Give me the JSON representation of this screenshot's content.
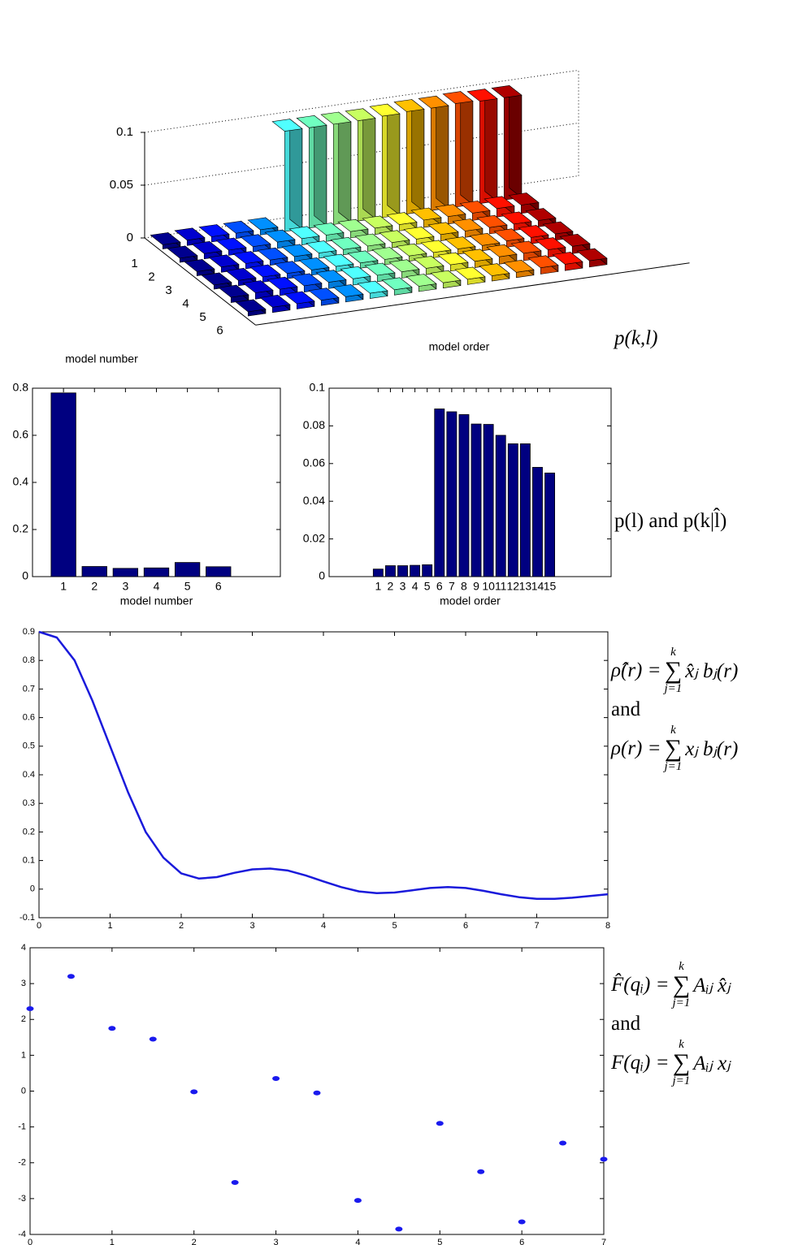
{
  "chart_data": [
    {
      "type": "bar3d",
      "xlabel": "model order",
      "ylabel": "model number",
      "caption": "p(k,l)",
      "model_ticks": [
        1,
        2,
        3,
        4,
        5,
        6
      ],
      "zlim": [
        0,
        0.1
      ],
      "zticks": [
        0,
        0.05,
        0.1
      ],
      "colors": [
        "#00008f",
        "#0000cf",
        "#0010ff",
        "#0050ff",
        "#0090ff",
        "#50ffff",
        "#70ffc0",
        "#a0ff90",
        "#c8ff60",
        "#ffff30",
        "#ffc000",
        "#ff9000",
        "#ff5000",
        "#ff1000",
        "#b00000"
      ],
      "values": [
        [
          0.004,
          0.005,
          0.005,
          0.005,
          0.005,
          0.095,
          0.095,
          0.095,
          0.095,
          0.096,
          0.097,
          0.097,
          0.098,
          0.097,
          0.097
        ],
        [
          0.004,
          0.005,
          0.005,
          0.005,
          0.006,
          0.006,
          0.006,
          0.006,
          0.006,
          0.006,
          0.007,
          0.007,
          0.007,
          0.008,
          0.008
        ],
        [
          0.004,
          0.005,
          0.005,
          0.005,
          0.005,
          0.005,
          0.005,
          0.005,
          0.005,
          0.005,
          0.006,
          0.006,
          0.006,
          0.006,
          0.006
        ],
        [
          0.004,
          0.005,
          0.005,
          0.005,
          0.005,
          0.005,
          0.005,
          0.005,
          0.005,
          0.005,
          0.005,
          0.005,
          0.006,
          0.006,
          0.006
        ],
        [
          0.005,
          0.006,
          0.006,
          0.006,
          0.006,
          0.006,
          0.006,
          0.006,
          0.006,
          0.006,
          0.006,
          0.007,
          0.007,
          0.007,
          0.007
        ],
        [
          0.004,
          0.005,
          0.005,
          0.005,
          0.005,
          0.005,
          0.005,
          0.005,
          0.005,
          0.005,
          0.005,
          0.005,
          0.006,
          0.006,
          0.006
        ]
      ]
    },
    {
      "type": "bar",
      "xlabel": "model number",
      "color": "#000080",
      "x": [
        1,
        2,
        3,
        4,
        5,
        6
      ],
      "values": [
        0.78,
        0.043,
        0.035,
        0.037,
        0.06,
        0.042
      ],
      "xlim": [
        0,
        8
      ],
      "xticks": [
        1,
        2,
        3,
        4,
        5,
        6
      ],
      "ylim": [
        0,
        0.8
      ],
      "yticks": [
        0,
        0.2,
        0.4,
        0.6,
        0.8
      ]
    },
    {
      "type": "bar",
      "xlabel": "model order",
      "color": "#000080",
      "caption": "p(l) and p(k|l̂)",
      "x": [
        1,
        2,
        3,
        4,
        5,
        6,
        7,
        8,
        9,
        10,
        11,
        12,
        13,
        14,
        15
      ],
      "values": [
        0.004,
        0.0058,
        0.0058,
        0.006,
        0.0063,
        0.089,
        0.0875,
        0.086,
        0.081,
        0.0808,
        0.075,
        0.0705,
        0.0705,
        0.058,
        0.055
      ],
      "xlim": [
        -3,
        20
      ],
      "xticks": [
        1,
        2,
        3,
        4,
        5,
        6,
        7,
        8,
        9,
        10,
        11,
        12,
        13,
        14,
        15
      ],
      "ylim": [
        0,
        0.1
      ],
      "yticks": [
        0,
        0.02,
        0.04,
        0.06,
        0.08,
        0.1
      ]
    },
    {
      "type": "line",
      "color": "#1a1adb",
      "x": [
        0,
        0.25,
        0.5,
        0.75,
        1,
        1.25,
        1.5,
        1.75,
        2,
        2.25,
        2.5,
        2.75,
        3,
        3.25,
        3.5,
        3.75,
        4,
        4.25,
        4.5,
        4.75,
        5,
        5.25,
        5.5,
        5.75,
        6,
        6.25,
        6.5,
        6.75,
        7,
        7.25,
        7.5,
        7.75,
        8
      ],
      "values": [
        0.9,
        0.88,
        0.8,
        0.66,
        0.5,
        0.34,
        0.2,
        0.11,
        0.055,
        0.037,
        0.042,
        0.057,
        0.069,
        0.072,
        0.065,
        0.048,
        0.027,
        0.007,
        -0.008,
        -0.014,
        -0.012,
        -0.004,
        0.004,
        0.007,
        0.004,
        -0.006,
        -0.018,
        -0.028,
        -0.034,
        -0.034,
        -0.03,
        -0.024,
        -0.018
      ],
      "xlim": [
        0,
        8
      ],
      "xticks": [
        0,
        1,
        2,
        3,
        4,
        5,
        6,
        7,
        8
      ],
      "ylim": [
        -0.1,
        0.9
      ],
      "yticks": [
        -0.1,
        0,
        0.1,
        0.2,
        0.3,
        0.4,
        0.5,
        0.6,
        0.7,
        0.8,
        0.9
      ],
      "conjunction": "and",
      "formulas": [
        {
          "lhs": "ρ̂(r) =",
          "op": "∑",
          "upper": "k",
          "lower": "j=1",
          "rhs": "x̂ⱼ bⱼ(r)"
        },
        {
          "lhs": "ρ(r) =",
          "op": "∑",
          "upper": "k",
          "lower": "j=1",
          "rhs": "xⱼ bⱼ(r)"
        }
      ]
    },
    {
      "type": "scatter",
      "color": "#1a1aee",
      "x": [
        0,
        0.5,
        1,
        1.5,
        2,
        2.5,
        3,
        3.5,
        4,
        4.5,
        5,
        5.5,
        6,
        6.5,
        7
      ],
      "values": [
        2.3,
        3.2,
        1.75,
        1.45,
        -0.02,
        -2.55,
        0.35,
        -0.05,
        -3.05,
        -3.85,
        -0.9,
        -2.25,
        -3.65,
        -1.45,
        -1.9
      ],
      "xlim": [
        0,
        7
      ],
      "xticks": [
        0,
        1,
        2,
        3,
        4,
        5,
        6,
        7
      ],
      "ylim": [
        -4,
        4
      ],
      "yticks": [
        -4,
        -3,
        -2,
        -1,
        0,
        1,
        2,
        3,
        4
      ],
      "conjunction": "and",
      "formulas": [
        {
          "lhs": "F̂(qᵢ) =",
          "op": "∑",
          "upper": "k",
          "lower": "j=1",
          "rhs": "Aᵢⱼ x̂ⱼ"
        },
        {
          "lhs": "F(qᵢ) =",
          "op": "∑",
          "upper": "k",
          "lower": "j=1",
          "rhs": "Aᵢⱼ xⱼ"
        }
      ]
    }
  ]
}
